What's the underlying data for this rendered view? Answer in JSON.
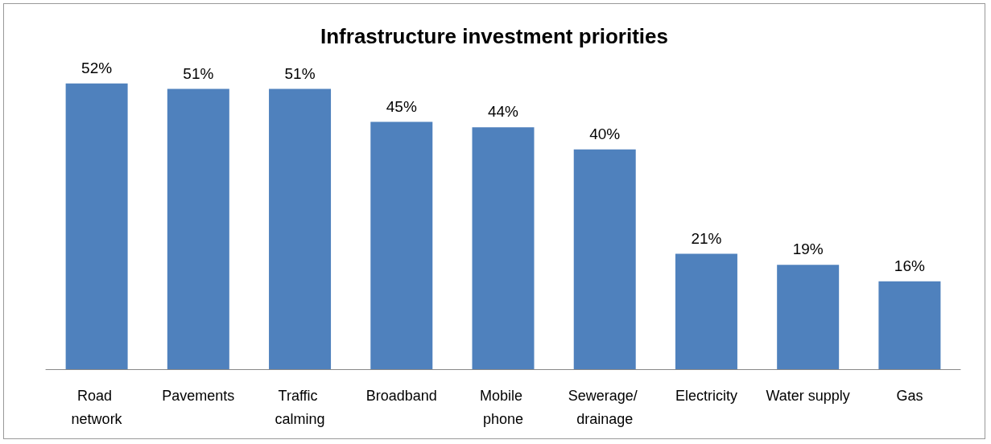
{
  "chart_data": {
    "type": "bar",
    "title": "Infrastructure investment priorities",
    "categories": [
      "Road network",
      "Pavements",
      "Traffic calming",
      "Broadband",
      "Mobile phone",
      "Sewerage/ drainage",
      "Electricity",
      "Water supply",
      "Gas"
    ],
    "values": [
      52,
      51,
      51,
      45,
      44,
      40,
      21,
      19,
      16
    ],
    "value_labels": [
      "52%",
      "51%",
      "51%",
      "45%",
      "44%",
      "40%",
      "21%",
      "19%",
      "16%"
    ],
    "color": "#4f81bd"
  }
}
